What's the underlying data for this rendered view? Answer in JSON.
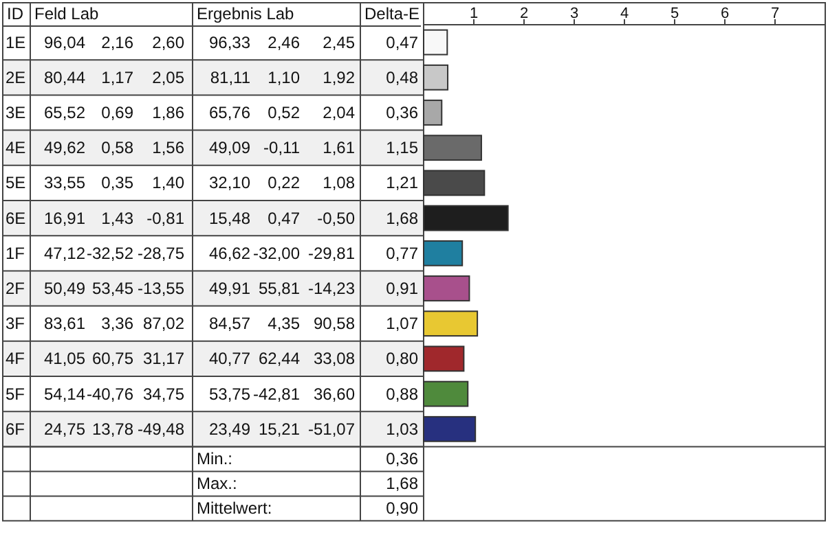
{
  "chart_data": {
    "type": "bar",
    "orientation": "horizontal",
    "ylabel": "ID",
    "categories": [
      "1E",
      "2E",
      "3E",
      "4E",
      "5E",
      "6E",
      "1F",
      "2F",
      "3F",
      "4F",
      "5F",
      "6F"
    ],
    "values": [
      0.47,
      0.48,
      0.36,
      1.15,
      1.21,
      1.68,
      0.77,
      0.91,
      1.07,
      0.8,
      0.88,
      1.03
    ],
    "value_labels": [
      "0,47",
      "0,48",
      "0,36",
      "1,15",
      "1,21",
      "1,68",
      "0,77",
      "0,91",
      "1,07",
      "0,80",
      "0,88",
      "1,03"
    ],
    "colors": [
      "#f8f8f8",
      "#c8c8c8",
      "#a8a8a8",
      "#6a6a6a",
      "#4a4a4a",
      "#1e1e1e",
      "#1f7fa0",
      "#a8508c",
      "#e8c832",
      "#a0282c",
      "#4f8a3c",
      "#27307f"
    ],
    "x2lim": [
      0,
      8
    ],
    "x2ticks": [
      1,
      2,
      3,
      4,
      5,
      6,
      7
    ],
    "grid": false,
    "annotations": [
      "Feld Lab",
      "Ergebnis Lab",
      "Delta-E",
      "96,04",
      "2,16",
      "2,60",
      "96,33",
      "2,46",
      "2,45",
      "80,44",
      "1,17",
      "2,05",
      "81,11",
      "1,10",
      "1,92",
      "65,52",
      "0,69",
      "1,86",
      "65,76",
      "0,52",
      "2,04",
      "49,62",
      "0,58",
      "1,56",
      "49,09",
      "-0,11",
      "1,61",
      "33,55",
      "0,35",
      "1,40",
      "32,10",
      "0,22",
      "1,08",
      "16,91",
      "1,43",
      "-0,81",
      "15,48",
      "0,47",
      "-0,50",
      "47,12",
      "-32,52",
      "-28,75",
      "46,62",
      "-32,00",
      "-29,81",
      "50,49",
      "53,45",
      "-13,55",
      "49,91",
      "55,81",
      "-14,23",
      "83,61",
      "3,36",
      "87,02",
      "84,57",
      "4,35",
      "90,58",
      "41,05",
      "60,75",
      "31,17",
      "40,77",
      "62,44",
      "33,08",
      "54,14",
      "-40,76",
      "34,75",
      "53,75",
      "-42,81",
      "36,60",
      "24,75",
      "13,78",
      "-49,48",
      "23,49",
      "15,21",
      "-51,07",
      "Min.:",
      "0,36",
      "Max.:",
      "1,68",
      "Mittelwert:",
      "0,90"
    ]
  }
}
